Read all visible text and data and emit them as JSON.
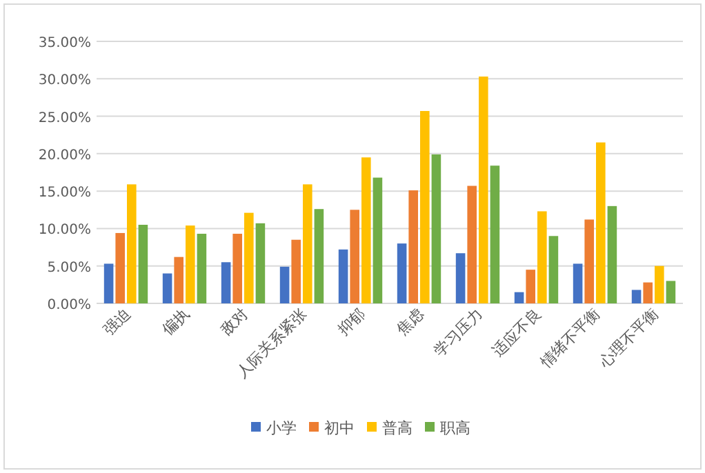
{
  "chart_data": {
    "type": "bar",
    "categories": [
      "强迫",
      "偏执",
      "敌对",
      "人际关系紧张",
      "抑郁",
      "焦虑",
      "学习压力",
      "适应不良",
      "情绪不平衡",
      "心理不平衡"
    ],
    "series": [
      {
        "name": "小学",
        "color": "#4472c4",
        "values": [
          5.3,
          4.0,
          5.5,
          4.9,
          7.2,
          8.0,
          6.7,
          1.5,
          5.3,
          1.8
        ]
      },
      {
        "name": "初中",
        "color": "#ed7d31",
        "values": [
          9.4,
          6.2,
          9.3,
          8.5,
          12.5,
          15.1,
          15.7,
          4.5,
          11.2,
          2.8
        ]
      },
      {
        "name": "普高",
        "color": "#ffc000",
        "values": [
          15.9,
          10.4,
          12.1,
          15.9,
          19.5,
          25.7,
          30.3,
          12.3,
          21.5,
          5.0
        ]
      },
      {
        "name": "职高",
        "color": "#70ad47",
        "values": [
          10.5,
          9.3,
          10.7,
          12.6,
          16.8,
          19.9,
          18.4,
          9.0,
          13.0,
          3.0
        ]
      }
    ],
    "ylim": [
      0,
      35
    ],
    "yticks": [
      {
        "value": 0,
        "label": "0.00%"
      },
      {
        "value": 5,
        "label": "5.00%"
      },
      {
        "value": 10,
        "label": "10.00%"
      },
      {
        "value": 15,
        "label": "15.00%"
      },
      {
        "value": 20,
        "label": "20.00%"
      },
      {
        "value": 25,
        "label": "25.00%"
      },
      {
        "value": 30,
        "label": "30.00%"
      },
      {
        "value": 35,
        "label": "35.00%"
      }
    ],
    "grid": "y",
    "legend": "bottom"
  }
}
